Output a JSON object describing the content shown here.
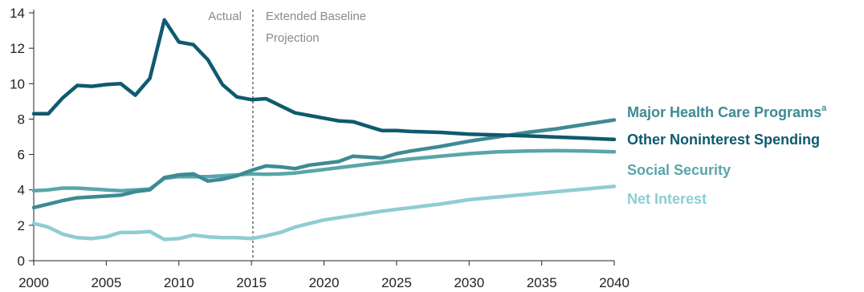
{
  "chart_data": {
    "type": "line",
    "title": "",
    "xlabel": "",
    "ylabel": "",
    "xlim": [
      2000,
      2040
    ],
    "ylim": [
      0,
      14
    ],
    "x_ticks": [
      2000,
      2005,
      2010,
      2015,
      2020,
      2025,
      2030,
      2035,
      2040
    ],
    "x_tick_labels": [
      "2000",
      "2005",
      "2010",
      "2015",
      "2020",
      "2025",
      "2030",
      "2035",
      "2040"
    ],
    "y_ticks": [
      0,
      2,
      4,
      6,
      8,
      10,
      12,
      14
    ],
    "y_tick_labels": [
      "0",
      "2",
      "4",
      "6",
      "8",
      "10",
      "12",
      "14"
    ],
    "grid": false,
    "divider_year": 2015.1,
    "annotations": {
      "actual": "Actual",
      "projection_line1": "Extended Baseline",
      "projection_line2": "Projection"
    },
    "series": [
      {
        "name": "Major Health Care Programs",
        "superscript": "a",
        "color": "#3e8a94",
        "points": [
          [
            2000,
            3.0
          ],
          [
            2001,
            3.2
          ],
          [
            2002,
            3.4
          ],
          [
            2003,
            3.55
          ],
          [
            2004,
            3.6
          ],
          [
            2005,
            3.65
          ],
          [
            2006,
            3.7
          ],
          [
            2007,
            3.9
          ],
          [
            2008,
            4.0
          ],
          [
            2009,
            4.7
          ],
          [
            2010,
            4.85
          ],
          [
            2011,
            4.9
          ],
          [
            2012,
            4.5
          ],
          [
            2013,
            4.6
          ],
          [
            2014,
            4.8
          ],
          [
            2015,
            5.1
          ],
          [
            2016,
            5.35
          ],
          [
            2017,
            5.3
          ],
          [
            2018,
            5.2
          ],
          [
            2019,
            5.4
          ],
          [
            2020,
            5.5
          ],
          [
            2021,
            5.6
          ],
          [
            2022,
            5.9
          ],
          [
            2023,
            5.85
          ],
          [
            2024,
            5.8
          ],
          [
            2025,
            6.05
          ],
          [
            2026,
            6.2
          ],
          [
            2028,
            6.45
          ],
          [
            2030,
            6.75
          ],
          [
            2032,
            7.0
          ],
          [
            2034,
            7.25
          ],
          [
            2036,
            7.45
          ],
          [
            2038,
            7.7
          ],
          [
            2040,
            7.95
          ]
        ]
      },
      {
        "name": "Other Noninterest Spending",
        "superscript": "",
        "color": "#0f5a6e",
        "points": [
          [
            2000,
            8.3
          ],
          [
            2001,
            8.3
          ],
          [
            2002,
            9.2
          ],
          [
            2003,
            9.9
          ],
          [
            2004,
            9.85
          ],
          [
            2005,
            9.95
          ],
          [
            2006,
            10.0
          ],
          [
            2007,
            9.35
          ],
          [
            2008,
            10.3
          ],
          [
            2009,
            13.6
          ],
          [
            2010,
            12.35
          ],
          [
            2011,
            12.2
          ],
          [
            2012,
            11.35
          ],
          [
            2013,
            9.95
          ],
          [
            2014,
            9.25
          ],
          [
            2015,
            9.1
          ],
          [
            2016,
            9.15
          ],
          [
            2017,
            8.75
          ],
          [
            2018,
            8.35
          ],
          [
            2019,
            8.2
          ],
          [
            2020,
            8.05
          ],
          [
            2021,
            7.9
          ],
          [
            2022,
            7.85
          ],
          [
            2023,
            7.6
          ],
          [
            2024,
            7.35
          ],
          [
            2025,
            7.35
          ],
          [
            2026,
            7.3
          ],
          [
            2028,
            7.25
          ],
          [
            2030,
            7.15
          ],
          [
            2032,
            7.1
          ],
          [
            2034,
            7.05
          ],
          [
            2036,
            6.98
          ],
          [
            2038,
            6.92
          ],
          [
            2040,
            6.85
          ]
        ]
      },
      {
        "name": "Social Security",
        "superscript": "",
        "color": "#5aa5ab",
        "points": [
          [
            2000,
            3.95
          ],
          [
            2001,
            4.0
          ],
          [
            2002,
            4.1
          ],
          [
            2003,
            4.1
          ],
          [
            2004,
            4.05
          ],
          [
            2005,
            4.0
          ],
          [
            2006,
            3.95
          ],
          [
            2007,
            4.0
          ],
          [
            2008,
            4.05
          ],
          [
            2009,
            4.65
          ],
          [
            2010,
            4.75
          ],
          [
            2011,
            4.75
          ],
          [
            2012,
            4.75
          ],
          [
            2013,
            4.8
          ],
          [
            2014,
            4.85
          ],
          [
            2015,
            4.9
          ],
          [
            2016,
            4.88
          ],
          [
            2017,
            4.9
          ],
          [
            2018,
            4.95
          ],
          [
            2019,
            5.05
          ],
          [
            2020,
            5.15
          ],
          [
            2022,
            5.35
          ],
          [
            2024,
            5.55
          ],
          [
            2026,
            5.75
          ],
          [
            2028,
            5.9
          ],
          [
            2030,
            6.05
          ],
          [
            2032,
            6.15
          ],
          [
            2034,
            6.2
          ],
          [
            2036,
            6.22
          ],
          [
            2038,
            6.2
          ],
          [
            2040,
            6.15
          ]
        ]
      },
      {
        "name": "Net Interest",
        "superscript": "",
        "color": "#8fcdd2",
        "points": [
          [
            2000,
            2.1
          ],
          [
            2001,
            1.9
          ],
          [
            2002,
            1.5
          ],
          [
            2003,
            1.3
          ],
          [
            2004,
            1.25
          ],
          [
            2005,
            1.35
          ],
          [
            2006,
            1.6
          ],
          [
            2007,
            1.6
          ],
          [
            2008,
            1.65
          ],
          [
            2009,
            1.2
          ],
          [
            2010,
            1.25
          ],
          [
            2011,
            1.45
          ],
          [
            2012,
            1.35
          ],
          [
            2013,
            1.3
          ],
          [
            2014,
            1.3
          ],
          [
            2015,
            1.25
          ],
          [
            2016,
            1.4
          ],
          [
            2017,
            1.6
          ],
          [
            2018,
            1.9
          ],
          [
            2019,
            2.1
          ],
          [
            2020,
            2.3
          ],
          [
            2022,
            2.55
          ],
          [
            2024,
            2.8
          ],
          [
            2026,
            3.0
          ],
          [
            2028,
            3.2
          ],
          [
            2030,
            3.45
          ],
          [
            2032,
            3.6
          ],
          [
            2034,
            3.75
          ],
          [
            2036,
            3.9
          ],
          [
            2038,
            4.05
          ],
          [
            2040,
            4.2
          ]
        ]
      }
    ]
  }
}
